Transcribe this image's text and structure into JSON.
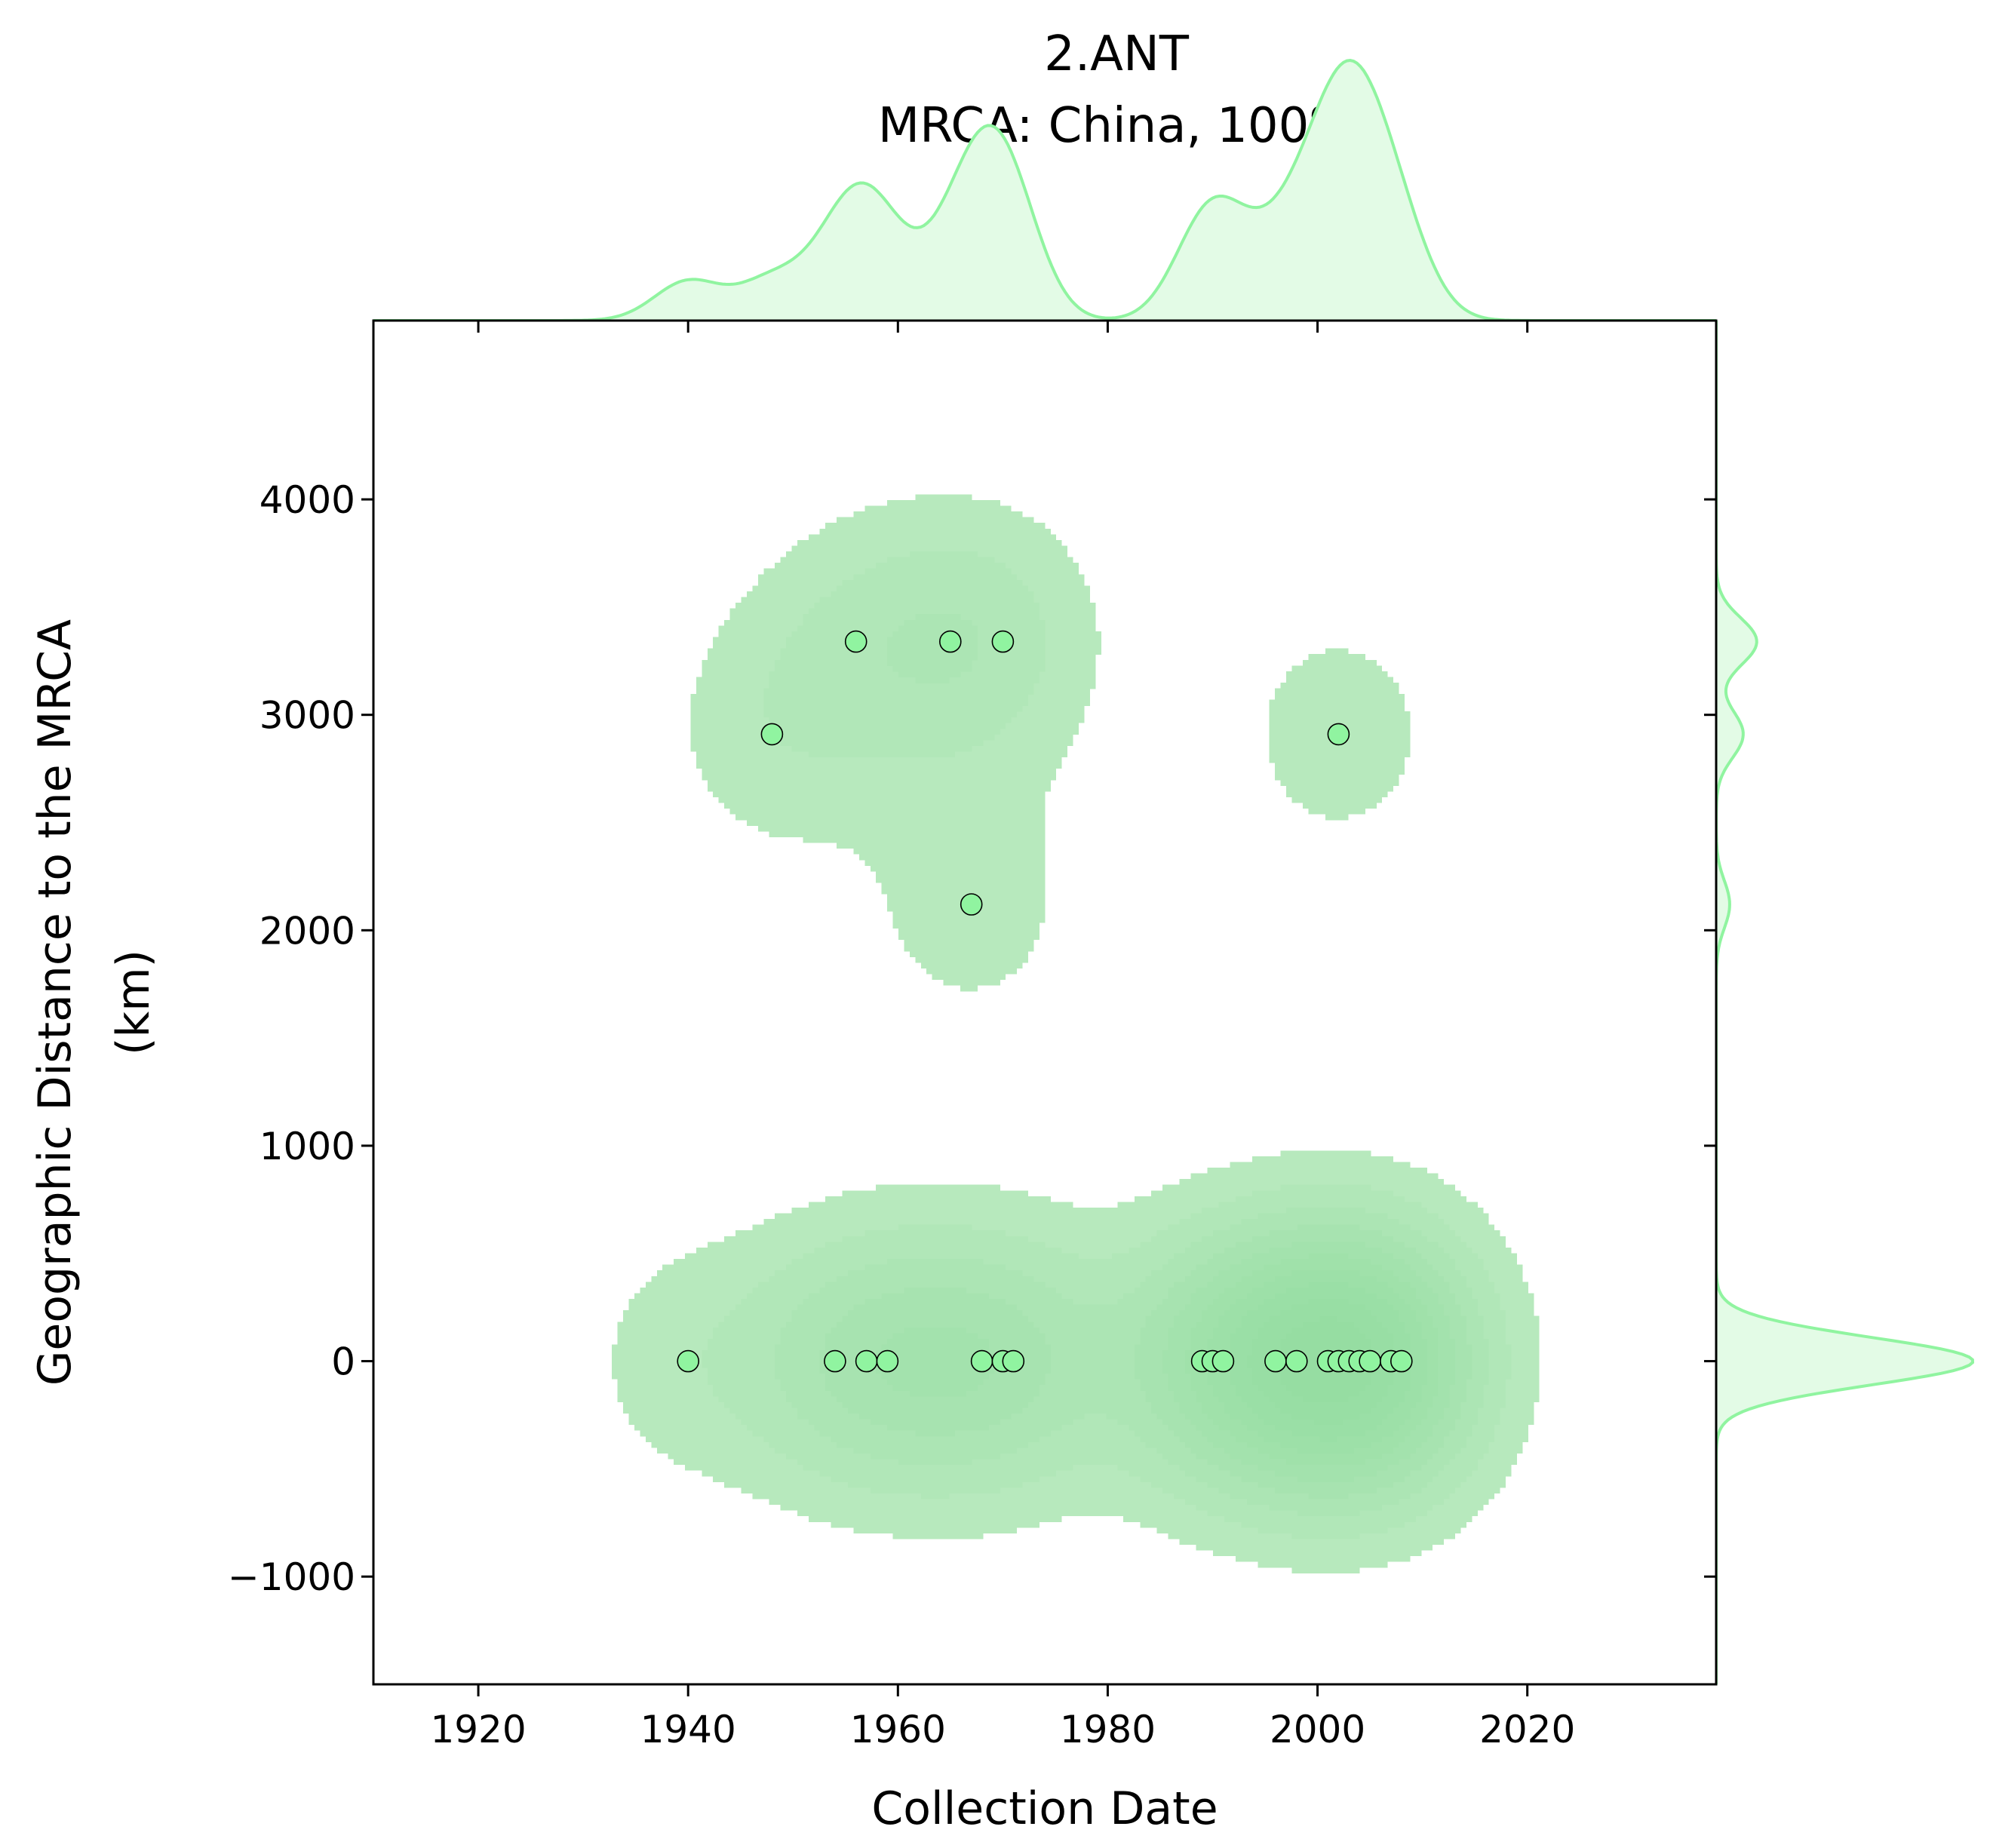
{
  "chart_data": {
    "type": "scatter",
    "title": "2.ANT",
    "subtitle": "MRCA: China, 100%",
    "xlabel": "Collection Date",
    "ylabel_line1": "Geographic Distance to the MRCA",
    "ylabel_line2": "(km)",
    "xlim": [
      1910,
      2038
    ],
    "ylim": [
      -1500,
      4830
    ],
    "xticks": [
      1920,
      1940,
      1960,
      1980,
      2000,
      2020
    ],
    "yticks": [
      -1000,
      0,
      1000,
      2000,
      3000,
      4000
    ],
    "xtick_labels": [
      "1920",
      "1940",
      "1960",
      "1980",
      "2000",
      "2020"
    ],
    "ytick_labels": [
      "−1000",
      "0",
      "1000",
      "2000",
      "3000",
      "4000"
    ],
    "grid": false,
    "colors": {
      "point_fill": "#90f4a0",
      "point_edge": "#000000",
      "kde_fill": "#90dd9a",
      "marginal_line": "#90f4a0",
      "marginal_fill": "#e3fbe6"
    },
    "points": [
      {
        "x": 1940,
        "y": 0
      },
      {
        "x": 1948,
        "y": 2910
      },
      {
        "x": 1954,
        "y": 0
      },
      {
        "x": 1956,
        "y": 3340
      },
      {
        "x": 1957,
        "y": 0
      },
      {
        "x": 1959,
        "y": 0
      },
      {
        "x": 1965,
        "y": 3340
      },
      {
        "x": 1967,
        "y": 2120
      },
      {
        "x": 1968,
        "y": 0
      },
      {
        "x": 1970,
        "y": 3340
      },
      {
        "x": 1970,
        "y": 0
      },
      {
        "x": 1971,
        "y": 0
      },
      {
        "x": 1989,
        "y": 0
      },
      {
        "x": 1990,
        "y": 0
      },
      {
        "x": 1991,
        "y": 0
      },
      {
        "x": 1996,
        "y": 0
      },
      {
        "x": 1998,
        "y": 0
      },
      {
        "x": 2001,
        "y": 0
      },
      {
        "x": 2002,
        "y": 0
      },
      {
        "x": 2002,
        "y": 2910
      },
      {
        "x": 2003,
        "y": 0
      },
      {
        "x": 2004,
        "y": 0
      },
      {
        "x": 2005,
        "y": 0
      },
      {
        "x": 2007,
        "y": 0
      },
      {
        "x": 2008,
        "y": 0
      }
    ]
  }
}
